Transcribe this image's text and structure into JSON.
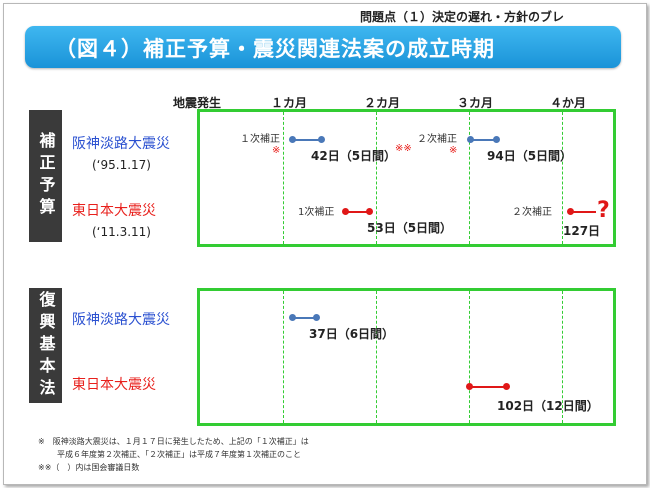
{
  "header": {
    "subtitle": "問題点（１）決定の遅れ・方針のブレ",
    "title": "（図４）補正予算・震災関連法案の成立時期"
  },
  "timeline": {
    "labels": [
      "地震発生",
      "１カ月",
      "２カ月",
      "３カ月",
      "４か月"
    ]
  },
  "panels": {
    "budget": {
      "title": "補正予算",
      "hanshin": {
        "name": "阪神淡路大震災",
        "date": "(‘95.1.17)"
      },
      "tohoku": {
        "name": "東日本大震災",
        "date": "(‘11.3.11)"
      },
      "events": {
        "h1_label": "１次補正",
        "h1_note": "※",
        "h1_days": "42日（5日間）",
        "h2_label": "２次補正",
        "h2_note": "※",
        "h2_days": "94日（5日間）",
        "midnote": "※※",
        "t1_label": "1次補正",
        "t1_days": "53日（5日間）",
        "t2_label": "２次補正",
        "t2_days": "127日",
        "t2_qmark": "?"
      }
    },
    "recovery": {
      "title": "復興基本法",
      "hanshin": {
        "name": "阪神淡路大震災"
      },
      "tohoku": {
        "name": "東日本大震災"
      },
      "events": {
        "h_days": "37日（6日間）",
        "t_days": "102日（12日間）"
      }
    }
  },
  "footnotes": {
    "line1": "※　阪神淡路大震災は、１月１７日に発生したため、上記の「１次補正」は",
    "line2": "平成６年度第２次補正、「２次補正」は平成７年度第１次補正のこと",
    "line3": "※※（　）内は国会審議日数"
  },
  "colors": {
    "hanshin": "#4a78b8",
    "tohoku": "#e01818",
    "grid": "#33cc33",
    "banner": "#1a93d8"
  }
}
